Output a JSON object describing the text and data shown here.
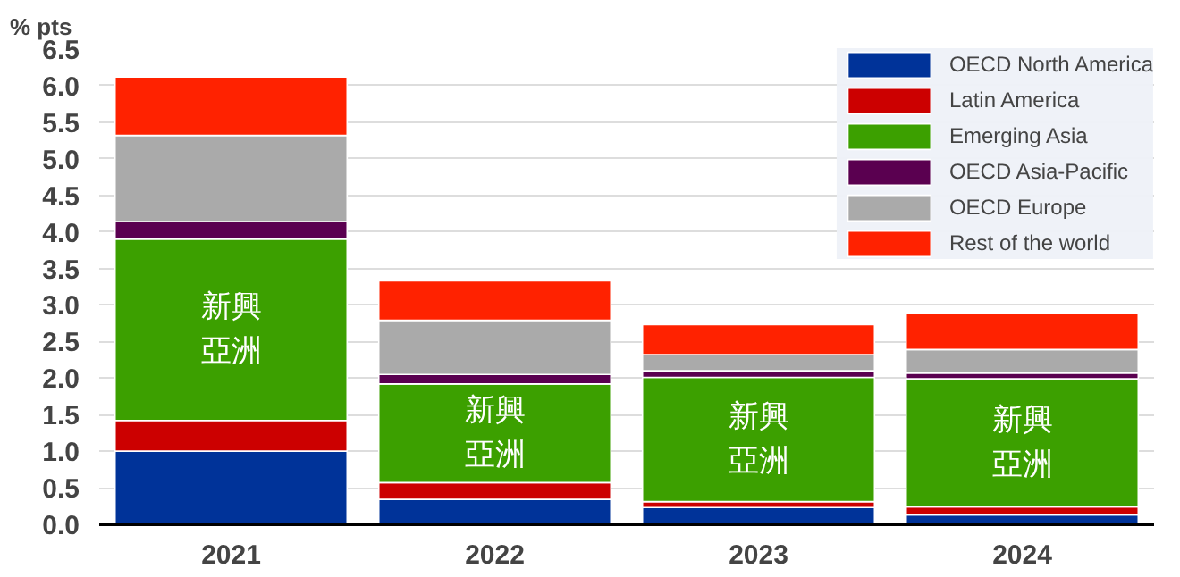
{
  "chart_data": {
    "type": "bar",
    "stacked": true,
    "ylabel": "% pts",
    "categories": [
      "2021",
      "2022",
      "2023",
      "2024"
    ],
    "series": [
      {
        "name": "OECD North America",
        "color": "#003399",
        "values": [
          1.0,
          0.34,
          0.23,
          0.13
        ]
      },
      {
        "name": "Latin America",
        "color": "#cc0000",
        "values": [
          0.42,
          0.23,
          0.08,
          0.11
        ]
      },
      {
        "name": "Emerging Asia",
        "color": "#3ca000",
        "values": [
          2.48,
          1.35,
          1.7,
          1.75
        ]
      },
      {
        "name": "OECD Asia-Pacific",
        "color": "#5a0050",
        "values": [
          0.24,
          0.13,
          0.09,
          0.08
        ]
      },
      {
        "name": "OECD Europe",
        "color": "#aaaaaa",
        "values": [
          1.18,
          0.74,
          0.22,
          0.32
        ]
      },
      {
        "name": "Rest of the world",
        "color": "#ff2200",
        "values": [
          0.8,
          0.54,
          0.41,
          0.5
        ]
      }
    ],
    "ylim": [
      0,
      6.5
    ],
    "yticks": [
      {
        "value": 0,
        "label": "0.0"
      },
      {
        "value": 0.5,
        "label": "0.5"
      },
      {
        "value": 1,
        "label": "1.0"
      },
      {
        "value": 1.5,
        "label": "1.5"
      },
      {
        "value": 2,
        "label": "2.0"
      },
      {
        "value": 2.5,
        "label": "2.5"
      },
      {
        "value": 3,
        "label": "3.0"
      },
      {
        "value": 3.5,
        "label": "3.5"
      },
      {
        "value": 4,
        "label": "4.0"
      },
      {
        "value": 4.5,
        "label": "4.5"
      },
      {
        "value": 5,
        "label": "5.0"
      },
      {
        "value": 5.5,
        "label": "5.5"
      },
      {
        "value": 6,
        "label": "6.0"
      },
      {
        "value": 6.5,
        "label": "6.5"
      }
    ],
    "grid": "y",
    "legend": "top right",
    "annotations": [
      "新興亞洲",
      "新興亞洲",
      "新興亞洲",
      "新興亞洲"
    ]
  }
}
